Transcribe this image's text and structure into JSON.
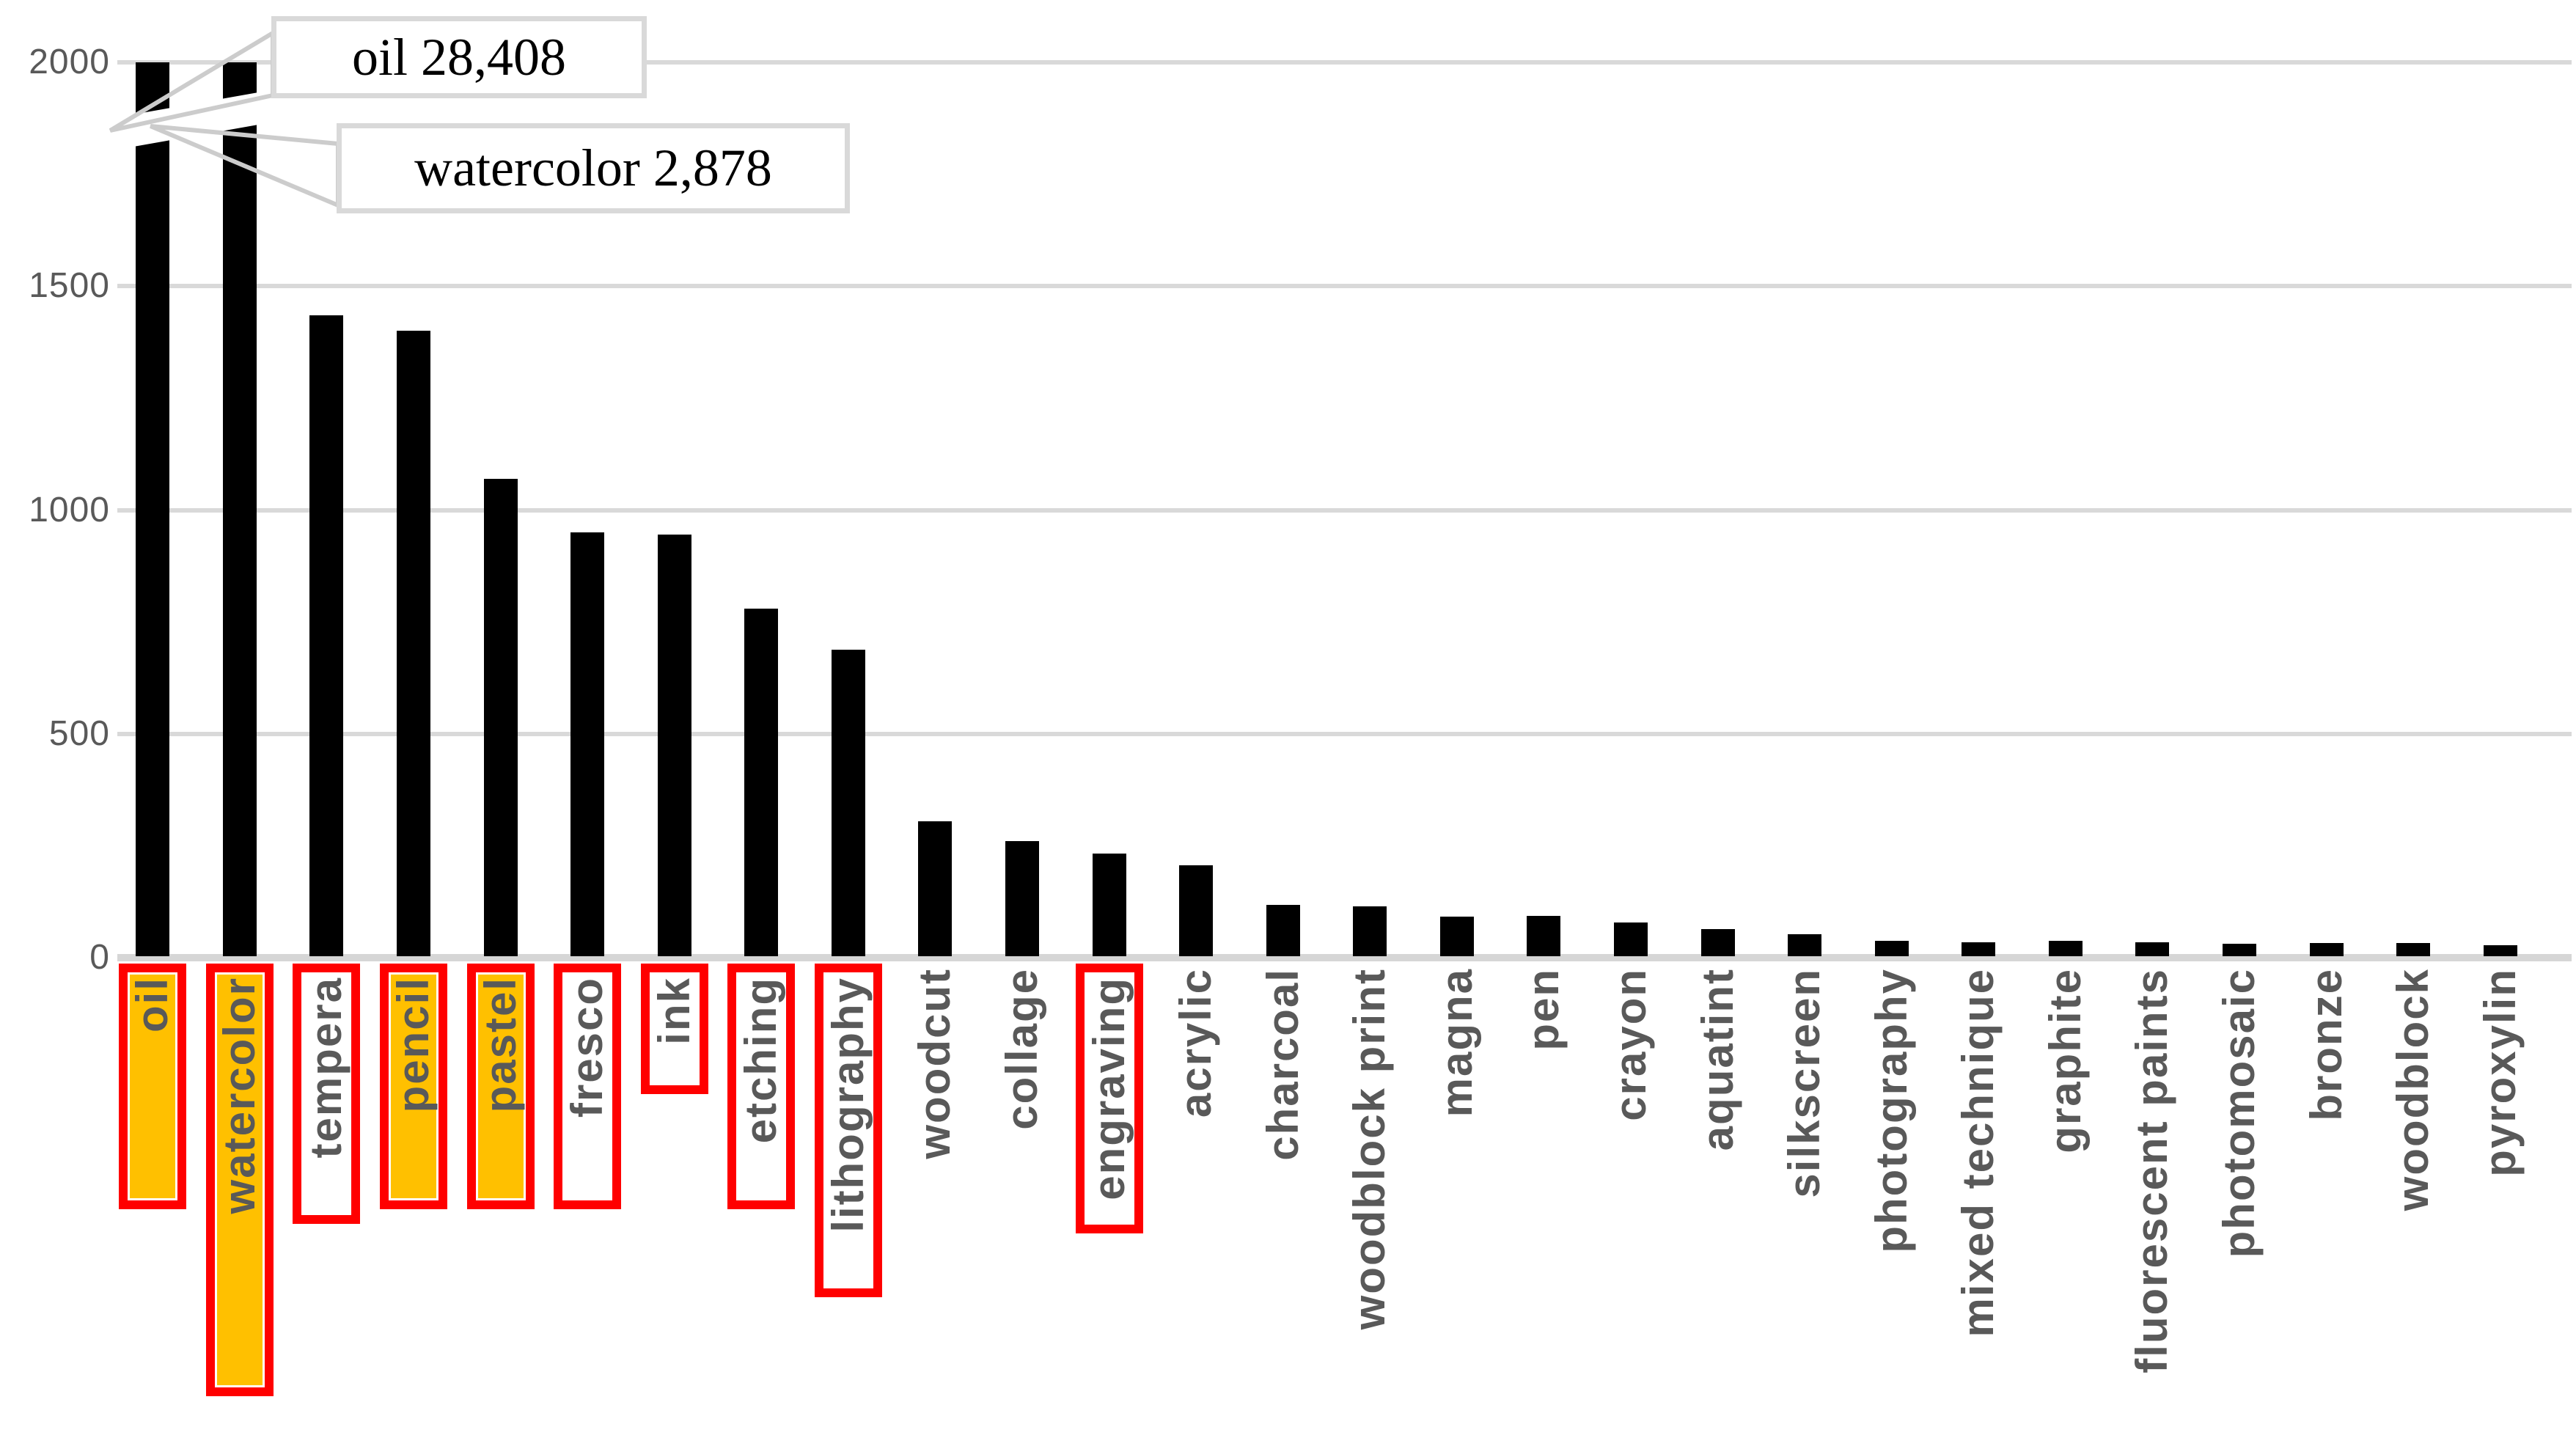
{
  "chart_data": {
    "type": "bar",
    "title": "",
    "xlabel": "",
    "ylabel": "",
    "ylim": [
      0,
      2000
    ],
    "yticks": [
      0,
      500,
      1000,
      1500,
      2000
    ],
    "ytick_labels": [
      "0",
      "500",
      "1000",
      "1500",
      "2000"
    ],
    "grid": true,
    "legend_position": "none",
    "bar_color": "#000000",
    "gridline_color": "#D9D9D9",
    "axis_text_color": "#595959",
    "red_box_color": "#FF0000",
    "highlight_color": "#FFC000",
    "categories": [
      {
        "label": "oil",
        "value": 28408,
        "clipped_at_axis_max": true,
        "red_box": true,
        "orange_highlight": true
      },
      {
        "label": "watercolor",
        "value": 2878,
        "clipped_at_axis_max": true,
        "red_box": true,
        "orange_highlight": true
      },
      {
        "label": "tempera",
        "value": 1435,
        "clipped_at_axis_max": false,
        "red_box": true,
        "orange_highlight": false
      },
      {
        "label": "pencil",
        "value": 1400,
        "clipped_at_axis_max": false,
        "red_box": true,
        "orange_highlight": true
      },
      {
        "label": "pastel",
        "value": 1070,
        "clipped_at_axis_max": false,
        "red_box": true,
        "orange_highlight": true
      },
      {
        "label": "fresco",
        "value": 950,
        "clipped_at_axis_max": false,
        "red_box": true,
        "orange_highlight": false
      },
      {
        "label": "ink",
        "value": 945,
        "clipped_at_axis_max": false,
        "red_box": true,
        "orange_highlight": false
      },
      {
        "label": "etching",
        "value": 780,
        "clipped_at_axis_max": false,
        "red_box": true,
        "orange_highlight": false
      },
      {
        "label": "lithography",
        "value": 688,
        "clipped_at_axis_max": false,
        "red_box": true,
        "orange_highlight": false
      },
      {
        "label": "woodcut",
        "value": 304,
        "clipped_at_axis_max": false,
        "red_box": false,
        "orange_highlight": false
      },
      {
        "label": "collage",
        "value": 261,
        "clipped_at_axis_max": false,
        "red_box": false,
        "orange_highlight": false
      },
      {
        "label": "engraving",
        "value": 232,
        "clipped_at_axis_max": false,
        "red_box": true,
        "orange_highlight": false
      },
      {
        "label": "acrylic",
        "value": 206,
        "clipped_at_axis_max": false,
        "red_box": false,
        "orange_highlight": false
      },
      {
        "label": "charcoal",
        "value": 118,
        "clipped_at_axis_max": false,
        "red_box": false,
        "orange_highlight": false
      },
      {
        "label": "woodblock print",
        "value": 114,
        "clipped_at_axis_max": false,
        "red_box": false,
        "orange_highlight": false
      },
      {
        "label": "magna",
        "value": 92,
        "clipped_at_axis_max": false,
        "red_box": false,
        "orange_highlight": false
      },
      {
        "label": "pen",
        "value": 93,
        "clipped_at_axis_max": false,
        "red_box": false,
        "orange_highlight": false
      },
      {
        "label": "crayon",
        "value": 79,
        "clipped_at_axis_max": false,
        "red_box": false,
        "orange_highlight": false
      },
      {
        "label": "aquatint",
        "value": 64,
        "clipped_at_axis_max": false,
        "red_box": false,
        "orange_highlight": false
      },
      {
        "label": "silkscreen",
        "value": 53,
        "clipped_at_axis_max": false,
        "red_box": false,
        "orange_highlight": false
      },
      {
        "label": "photography",
        "value": 38,
        "clipped_at_axis_max": false,
        "red_box": false,
        "orange_highlight": false
      },
      {
        "label": "mixed technique",
        "value": 34,
        "clipped_at_axis_max": false,
        "red_box": false,
        "orange_highlight": false
      },
      {
        "label": "graphite",
        "value": 38,
        "clipped_at_axis_max": false,
        "red_box": false,
        "orange_highlight": false
      },
      {
        "label": "fluorescent paints",
        "value": 35,
        "clipped_at_axis_max": false,
        "red_box": false,
        "orange_highlight": false
      },
      {
        "label": "photomosaic",
        "value": 31,
        "clipped_at_axis_max": false,
        "red_box": false,
        "orange_highlight": false
      },
      {
        "label": "bronze",
        "value": 33,
        "clipped_at_axis_max": false,
        "red_box": false,
        "orange_highlight": false
      },
      {
        "label": "woodblock",
        "value": 33,
        "clipped_at_axis_max": false,
        "red_box": false,
        "orange_highlight": false
      },
      {
        "label": "pyroxylin",
        "value": 28,
        "clipped_at_axis_max": false,
        "red_box": false,
        "orange_highlight": false
      }
    ],
    "annotations": [
      {
        "target": "oil",
        "text": "oil 28,408"
      },
      {
        "target": "watercolor",
        "text": "watercolor 2,878"
      }
    ]
  }
}
